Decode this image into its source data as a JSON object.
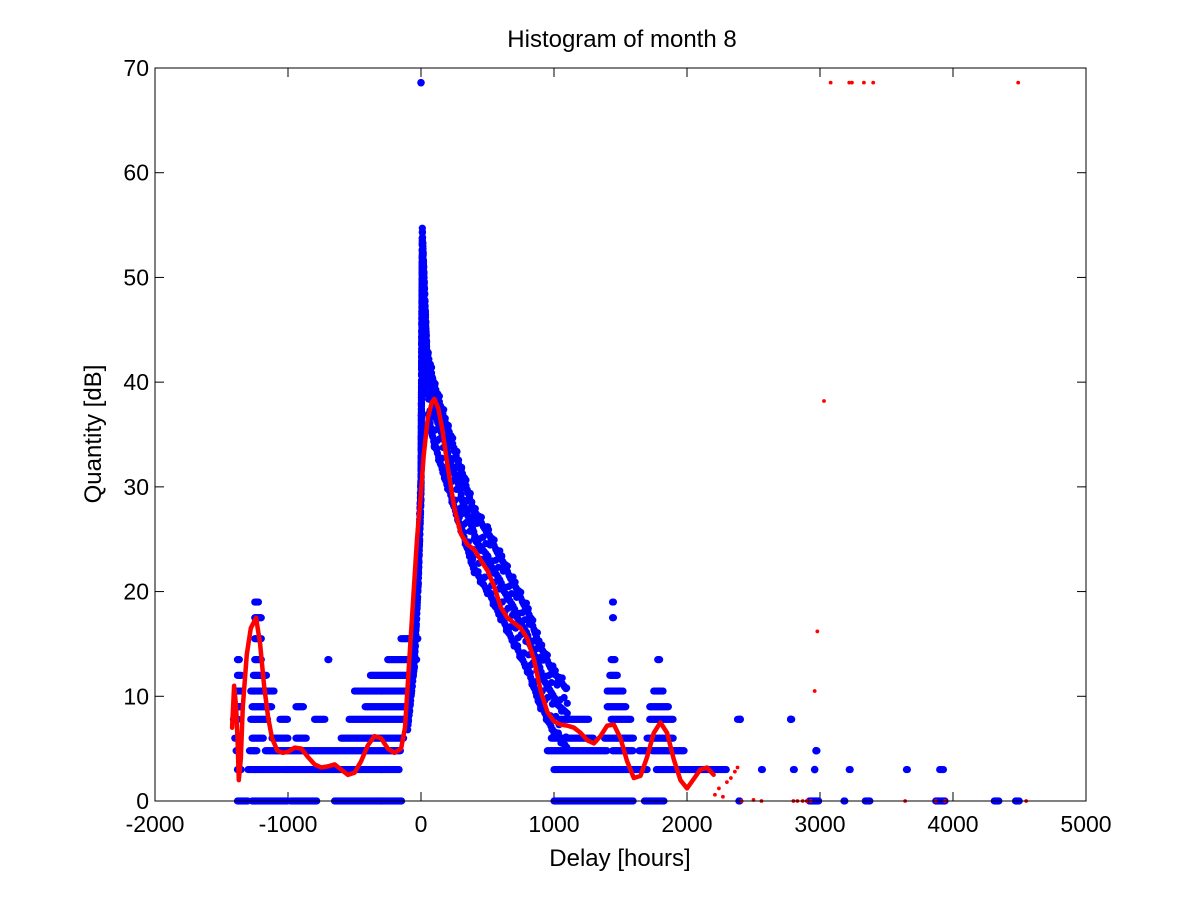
{
  "chart_data": {
    "type": "scatter",
    "title": "Histogram of month 8",
    "xlabel": "Delay [hours]",
    "ylabel": "Quantity [dB]",
    "xlim": [
      -2000,
      5000
    ],
    "ylim": [
      0,
      70
    ],
    "xticks": [
      "-2000",
      "-1000",
      "0",
      "1000",
      "2000",
      "3000",
      "4000",
      "5000"
    ],
    "yticks": [
      "0",
      "10",
      "20",
      "30",
      "40",
      "50",
      "60",
      "70"
    ],
    "grid": false,
    "legend": "none",
    "colors": {
      "scatter": "#0000ff",
      "smoothed": "#ff0000",
      "axes": "#000000"
    },
    "series": [
      {
        "style": "blue filled circle markers",
        "bands": [
          {
            "y": 0,
            "ranges": [
              [
                -1380,
                -1300
              ],
              [
                -1270,
                -1000
              ],
              [
                -980,
                -780
              ],
              [
                -650,
                -140
              ],
              [
                1000,
                1600
              ],
              [
                1680,
                1830
              ],
              [
                2390,
                2400
              ],
              [
                2920,
                2990
              ],
              [
                3180,
                3190
              ],
              [
                3340,
                3380
              ],
              [
                3870,
                3940
              ],
              [
                4310,
                4350
              ],
              [
                4470,
                4500
              ]
            ]
          },
          {
            "y": 3,
            "ranges": [
              [
                -1380,
                -1350
              ],
              [
                -1300,
                -1050
              ],
              [
                -1040,
                -160
              ],
              [
                1000,
                1700
              ],
              [
                1770,
                2300
              ],
              [
                2560,
                2570
              ],
              [
                2800,
                2810
              ],
              [
                3220,
                3230
              ],
              [
                3650,
                3660
              ],
              [
                3900,
                3930
              ]
            ]
          },
          {
            "y": 4.8,
            "ranges": [
              [
                -1390,
                -1370
              ],
              [
                -1290,
                -1230
              ],
              [
                -1170,
                -150
              ],
              [
                950,
                1400
              ],
              [
                1440,
                1600
              ],
              [
                1640,
                1700
              ],
              [
                1740,
                1980
              ],
              [
                2970,
                2980
              ]
            ]
          },
          {
            "y": 6,
            "ranges": [
              [
                -1400,
                -1360
              ],
              [
                -1270,
                -1180
              ],
              [
                -1120,
                -1000
              ],
              [
                -940,
                -860
              ],
              [
                -600,
                -130
              ],
              [
                980,
                1300
              ],
              [
                1380,
                1600
              ],
              [
                1700,
                1900
              ]
            ]
          },
          {
            "y": 7.8,
            "ranges": [
              [
                -1410,
                -1370
              ],
              [
                -1280,
                -1150
              ],
              [
                -1060,
                -1000
              ],
              [
                -800,
                -720
              ],
              [
                -540,
                -110
              ],
              [
                1050,
                1260
              ],
              [
                1430,
                1580
              ],
              [
                1720,
                1900
              ],
              [
                2380,
                2390
              ],
              [
                2780,
                2790
              ]
            ]
          },
          {
            "y": 9,
            "ranges": [
              [
                -1390,
                -1350
              ],
              [
                -1270,
                -1120
              ],
              [
                -940,
                -880
              ],
              [
                -420,
                -100
              ],
              [
                1400,
                1540
              ],
              [
                1720,
                1860
              ]
            ]
          },
          {
            "y": 10.5,
            "ranges": [
              [
                -1380,
                -1350
              ],
              [
                -1280,
                -1100
              ],
              [
                -500,
                -80
              ],
              [
                1400,
                1520
              ],
              [
                1750,
                1820
              ]
            ]
          },
          {
            "y": 12,
            "ranges": [
              [
                -1380,
                -1350
              ],
              [
                -1260,
                -1160
              ],
              [
                -380,
                -60
              ],
              [
                1420,
                1480
              ]
            ]
          },
          {
            "y": 13.5,
            "ranges": [
              [
                -1380,
                -1360
              ],
              [
                -1250,
                -1200
              ],
              [
                -700,
                -690
              ],
              [
                -250,
                -30
              ],
              [
                1430,
                1460
              ],
              [
                1780,
                1800
              ]
            ]
          },
          {
            "y": 15.5,
            "ranges": [
              [
                -1250,
                -1200
              ],
              [
                -150,
                -20
              ]
            ]
          },
          {
            "y": 17.5,
            "ranges": [
              [
                -1250,
                -1200
              ],
              [
                1440,
                1450
              ]
            ]
          },
          {
            "y": 19,
            "ranges": [
              [
                -1250,
                -1220
              ],
              [
                1440,
                1450
              ]
            ]
          }
        ],
        "ridge": [
          [
            -100,
            8
          ],
          [
            -50,
            14
          ],
          [
            -20,
            22
          ],
          [
            0,
            30
          ],
          [
            5,
            42
          ],
          [
            10,
            53.5
          ],
          [
            50,
            40
          ],
          [
            100,
            37
          ],
          [
            200,
            33
          ],
          [
            300,
            29
          ],
          [
            400,
            25
          ],
          [
            500,
            23
          ],
          [
            600,
            20.5
          ],
          [
            700,
            18
          ],
          [
            800,
            15.5
          ],
          [
            900,
            12
          ],
          [
            1000,
            9.5
          ],
          [
            1100,
            8
          ]
        ],
        "points": [
          [
            0,
            68.6
          ],
          [
            2970,
            4.8
          ],
          [
            2960,
            3
          ],
          [
            2400,
            7.8
          ],
          [
            2780,
            7.8
          ]
        ]
      },
      {
        "style": "red smoothed line",
        "points": [
          [
            -1420,
            7
          ],
          [
            -1405,
            11
          ],
          [
            -1390,
            9
          ],
          [
            -1380,
            6
          ],
          [
            -1370,
            2
          ],
          [
            -1355,
            4
          ],
          [
            -1340,
            9
          ],
          [
            -1310,
            14
          ],
          [
            -1280,
            16.5
          ],
          [
            -1240,
            17.5
          ],
          [
            -1210,
            15
          ],
          [
            -1180,
            11
          ],
          [
            -1150,
            8
          ],
          [
            -1120,
            6
          ],
          [
            -1080,
            4.8
          ],
          [
            -1040,
            4.6
          ],
          [
            -1000,
            4.7
          ],
          [
            -950,
            5.1
          ],
          [
            -900,
            5
          ],
          [
            -850,
            4.2
          ],
          [
            -800,
            3.5
          ],
          [
            -750,
            3.2
          ],
          [
            -700,
            3.3
          ],
          [
            -650,
            3.5
          ],
          [
            -600,
            3
          ],
          [
            -550,
            2.5
          ],
          [
            -500,
            2.7
          ],
          [
            -450,
            3.8
          ],
          [
            -400,
            5.3
          ],
          [
            -350,
            6.2
          ],
          [
            -300,
            6
          ],
          [
            -250,
            5
          ],
          [
            -200,
            4.6
          ],
          [
            -150,
            5
          ],
          [
            -120,
            7
          ],
          [
            -90,
            13
          ],
          [
            -60,
            19
          ],
          [
            -30,
            25
          ],
          [
            0,
            29.5
          ],
          [
            20,
            33
          ],
          [
            50,
            36.5
          ],
          [
            80,
            38
          ],
          [
            100,
            38.4
          ],
          [
            130,
            37.5
          ],
          [
            160,
            35.5
          ],
          [
            200,
            32
          ],
          [
            250,
            28
          ],
          [
            300,
            25.5
          ],
          [
            350,
            24.5
          ],
          [
            400,
            24
          ],
          [
            450,
            23
          ],
          [
            500,
            22
          ],
          [
            550,
            20.5
          ],
          [
            600,
            18.5
          ],
          [
            650,
            17.5
          ],
          [
            700,
            17
          ],
          [
            750,
            16.5
          ],
          [
            800,
            15.5
          ],
          [
            850,
            13.5
          ],
          [
            900,
            10.5
          ],
          [
            950,
            8.5
          ],
          [
            1000,
            7.6
          ],
          [
            1050,
            7.3
          ],
          [
            1100,
            7.2
          ],
          [
            1150,
            7
          ],
          [
            1200,
            6.5
          ],
          [
            1250,
            5.8
          ],
          [
            1300,
            5.5
          ],
          [
            1350,
            6.2
          ],
          [
            1400,
            7.2
          ],
          [
            1450,
            7.3
          ],
          [
            1500,
            6
          ],
          [
            1550,
            3.8
          ],
          [
            1600,
            2.2
          ],
          [
            1650,
            2.4
          ],
          [
            1700,
            4.2
          ],
          [
            1750,
            6.5
          ],
          [
            1800,
            7.5
          ],
          [
            1850,
            6.5
          ],
          [
            1900,
            4
          ],
          [
            1950,
            2
          ],
          [
            2000,
            1.2
          ],
          [
            2050,
            2.1
          ],
          [
            2100,
            3
          ],
          [
            2150,
            3.2
          ],
          [
            2200,
            2.5
          ]
        ]
      },
      {
        "style": "red dot markers",
        "points": [
          [
            2210,
            0.6
          ],
          [
            2240,
            1.2
          ],
          [
            2270,
            0.4
          ],
          [
            2300,
            1.8
          ],
          [
            2330,
            2.2
          ],
          [
            2360,
            2.8
          ],
          [
            2380,
            3.2
          ],
          [
            2410,
            0
          ],
          [
            2500,
            0.1
          ],
          [
            2560,
            0
          ],
          [
            2800,
            0
          ],
          [
            2830,
            0
          ],
          [
            2870,
            0
          ],
          [
            2900,
            0
          ],
          [
            2930,
            0
          ],
          [
            2960,
            10.5
          ],
          [
            2980,
            16.2
          ],
          [
            3030,
            38.2
          ],
          [
            3080,
            68.6
          ],
          [
            3220,
            68.6
          ],
          [
            3240,
            68.6
          ],
          [
            3330,
            68.6
          ],
          [
            3400,
            68.6
          ],
          [
            3640,
            0
          ],
          [
            3870,
            0
          ],
          [
            3940,
            0
          ],
          [
            4490,
            68.6
          ],
          [
            4550,
            0
          ]
        ]
      }
    ]
  }
}
